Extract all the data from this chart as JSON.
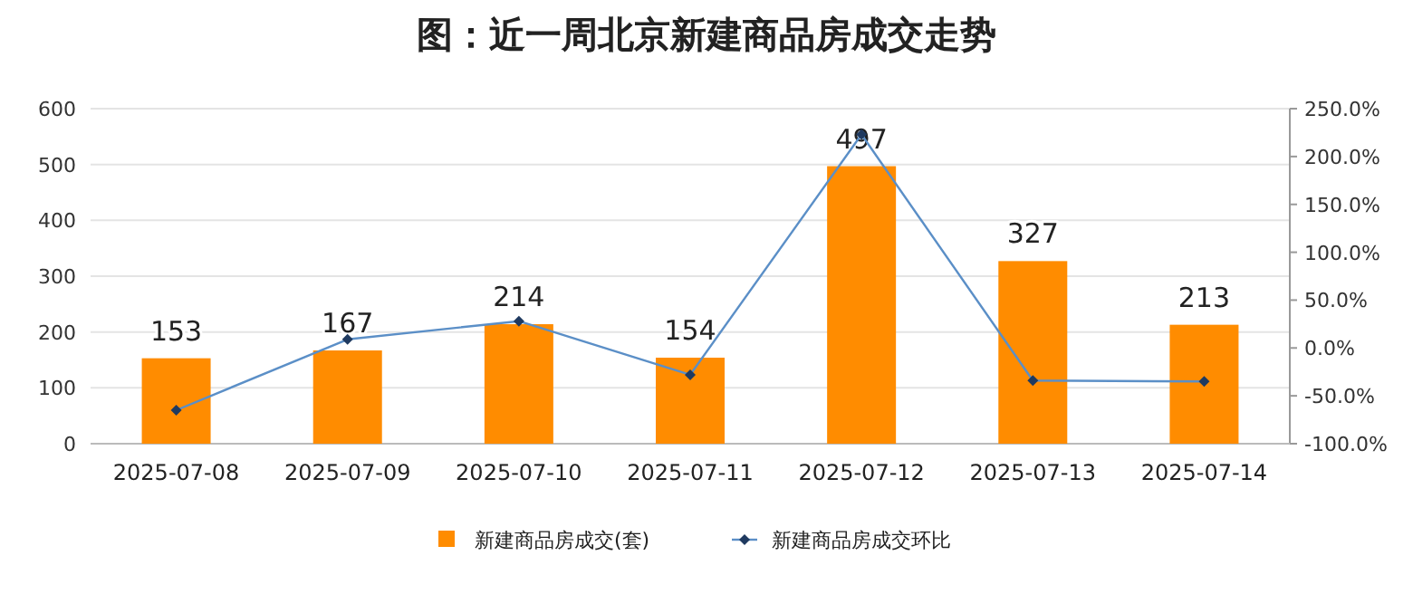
{
  "chart_data": {
    "type": "bar",
    "title": "图：近一周北京新建商品房成交走势",
    "categories": [
      "2025-07-08",
      "2025-07-09",
      "2025-07-10",
      "2025-07-11",
      "2025-07-12",
      "2025-07-13",
      "2025-07-14"
    ],
    "series": [
      {
        "name": "新建商品房成交(套)",
        "color": "#ff8c00",
        "values": [
          153,
          167,
          214,
          154,
          497,
          327,
          213
        ],
        "value_labels": [
          "153",
          "167",
          "214",
          "154",
          "497",
          "327",
          "213"
        ]
      },
      {
        "name": "新建商品房成交环比",
        "type": "line",
        "axis": "y2",
        "color": "#5b8fc7",
        "marker": "diamond",
        "values": [
          -65,
          9,
          28,
          -28,
          223,
          -34,
          -35
        ]
      }
    ],
    "ylim": [
      0,
      600
    ],
    "yticks": [
      0,
      100,
      200,
      300,
      400,
      500,
      600
    ],
    "y2lim": [
      -100,
      250
    ],
    "y2ticks": [
      {
        "value": -100,
        "label": "-100.0%"
      },
      {
        "value": -50,
        "label": "-50.0%"
      },
      {
        "value": 0,
        "label": "0.0%"
      },
      {
        "value": 50,
        "label": "50.0%"
      },
      {
        "value": 100,
        "label": "100.0%"
      },
      {
        "value": 150,
        "label": "150.0%"
      },
      {
        "value": 200,
        "label": "200.0%"
      },
      {
        "value": 250,
        "label": "250.0%"
      }
    ],
    "grid": "y",
    "legend": "bottom"
  }
}
